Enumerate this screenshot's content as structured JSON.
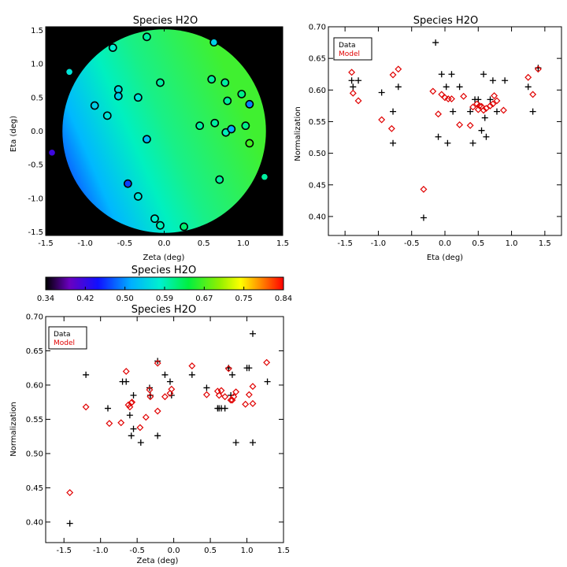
{
  "chart_data": [
    {
      "id": "map",
      "type": "scatter",
      "title": "Species H2O",
      "xlabel": "Zeta (deg)",
      "ylabel": "Eta (deg)",
      "xlim": [
        -1.5,
        1.5
      ],
      "ylim": [
        -1.55,
        1.55
      ],
      "xticks": [
        "-1.5",
        "-1.0",
        "-0.5",
        "0.0",
        "0.5",
        "1.0",
        "1.5"
      ],
      "yticks": [
        "-1.5",
        "-1.0",
        "-0.5",
        "0.0",
        "0.5",
        "1.0",
        "1.5"
      ],
      "background_field": "H2O normalization model, circular field of view on black background",
      "points": [
        {
          "x": -1.42,
          "y": -0.32,
          "v": 0.42
        },
        {
          "x": -1.2,
          "y": 0.88,
          "v": 0.57
        },
        {
          "x": -0.88,
          "y": 0.38,
          "v": 0.55
        },
        {
          "x": -0.72,
          "y": 0.23,
          "v": 0.57
        },
        {
          "x": -0.65,
          "y": 1.24,
          "v": 0.58
        },
        {
          "x": -0.58,
          "y": 0.62,
          "v": 0.56
        },
        {
          "x": -0.58,
          "y": 0.52,
          "v": 0.55
        },
        {
          "x": -0.46,
          "y": -0.78,
          "v": 0.47
        },
        {
          "x": -0.33,
          "y": -0.97,
          "v": 0.57
        },
        {
          "x": -0.33,
          "y": 0.5,
          "v": 0.57
        },
        {
          "x": -0.22,
          "y": 1.4,
          "v": 0.6
        },
        {
          "x": -0.22,
          "y": -0.12,
          "v": 0.53
        },
        {
          "x": -0.12,
          "y": -1.3,
          "v": 0.58
        },
        {
          "x": -0.05,
          "y": -1.4,
          "v": 0.59
        },
        {
          "x": -0.05,
          "y": 0.72,
          "v": 0.6
        },
        {
          "x": 0.25,
          "y": -1.42,
          "v": 0.62
        },
        {
          "x": 0.45,
          "y": 0.08,
          "v": 0.6
        },
        {
          "x": 0.6,
          "y": 0.77,
          "v": 0.6
        },
        {
          "x": 0.63,
          "y": 1.32,
          "v": 0.55
        },
        {
          "x": 0.64,
          "y": 0.12,
          "v": 0.6
        },
        {
          "x": 0.7,
          "y": -0.72,
          "v": 0.6
        },
        {
          "x": 0.77,
          "y": 0.72,
          "v": 0.6
        },
        {
          "x": 0.78,
          "y": -0.02,
          "v": 0.59
        },
        {
          "x": 0.8,
          "y": 0.45,
          "v": 0.6
        },
        {
          "x": 0.85,
          "y": 0.03,
          "v": 0.52
        },
        {
          "x": 0.98,
          "y": 0.55,
          "v": 0.61
        },
        {
          "x": 1.03,
          "y": 0.08,
          "v": 0.61
        },
        {
          "x": 1.08,
          "y": 0.4,
          "v": 0.5
        },
        {
          "x": 1.08,
          "y": -0.18,
          "v": 0.67
        },
        {
          "x": 1.27,
          "y": -0.68,
          "v": 0.6
        }
      ]
    },
    {
      "id": "eta",
      "type": "scatter",
      "title": "Species H2O",
      "xlabel": "Eta (deg)",
      "ylabel": "Normalization",
      "xlim": [
        -1.75,
        1.75
      ],
      "ylim": [
        0.37,
        0.7
      ],
      "xticks": [
        "-1.5",
        "-1.0",
        "-0.5",
        "0.0",
        "0.5",
        "1.0",
        "1.5"
      ],
      "yticks": [
        "0.40",
        "0.45",
        "0.50",
        "0.55",
        "0.60",
        "0.65",
        "0.70"
      ],
      "legend": {
        "position": "top-left",
        "entries": [
          {
            "label": "Data",
            "color": "#000000"
          },
          {
            "label": "Model",
            "color": "#e00000"
          }
        ]
      },
      "series": [
        {
          "name": "Data",
          "marker": "plus",
          "color": "#000000",
          "points": [
            [
              -1.4,
              0.615
            ],
            [
              -1.38,
              0.605
            ],
            [
              -1.3,
              0.615
            ],
            [
              -0.95,
              0.596
            ],
            [
              -0.78,
              0.516
            ],
            [
              -0.78,
              0.566
            ],
            [
              -0.7,
              0.605
            ],
            [
              -0.32,
              0.398
            ],
            [
              -0.14,
              0.675
            ],
            [
              -0.1,
              0.526
            ],
            [
              -0.05,
              0.625
            ],
            [
              0.02,
              0.605
            ],
            [
              0.04,
              0.516
            ],
            [
              0.1,
              0.625
            ],
            [
              0.12,
              0.566
            ],
            [
              0.22,
              0.605
            ],
            [
              0.38,
              0.566
            ],
            [
              0.42,
              0.516
            ],
            [
              0.45,
              0.585
            ],
            [
              0.5,
              0.585
            ],
            [
              0.55,
              0.536
            ],
            [
              0.58,
              0.625
            ],
            [
              0.6,
              0.556
            ],
            [
              0.62,
              0.526
            ],
            [
              0.68,
              0.585
            ],
            [
              0.72,
              0.615
            ],
            [
              0.78,
              0.566
            ],
            [
              0.9,
              0.615
            ],
            [
              1.25,
              0.605
            ],
            [
              1.32,
              0.566
            ],
            [
              1.4,
              0.635
            ]
          ]
        },
        {
          "name": "Model",
          "marker": "diamond",
          "color": "#e00000",
          "points": [
            [
              -1.4,
              0.628
            ],
            [
              -1.38,
              0.595
            ],
            [
              -1.3,
              0.583
            ],
            [
              -0.95,
              0.553
            ],
            [
              -0.8,
              0.539
            ],
            [
              -0.78,
              0.624
            ],
            [
              -0.7,
              0.633
            ],
            [
              -0.32,
              0.443
            ],
            [
              -0.18,
              0.598
            ],
            [
              -0.1,
              0.562
            ],
            [
              -0.05,
              0.593
            ],
            [
              0.0,
              0.588
            ],
            [
              0.05,
              0.586
            ],
            [
              0.1,
              0.586
            ],
            [
              0.22,
              0.545
            ],
            [
              0.28,
              0.59
            ],
            [
              0.38,
              0.544
            ],
            [
              0.42,
              0.573
            ],
            [
              0.48,
              0.578
            ],
            [
              0.5,
              0.569
            ],
            [
              0.52,
              0.575
            ],
            [
              0.55,
              0.574
            ],
            [
              0.58,
              0.568
            ],
            [
              0.62,
              0.571
            ],
            [
              0.68,
              0.575
            ],
            [
              0.72,
              0.578
            ],
            [
              0.74,
              0.591
            ],
            [
              0.78,
              0.583
            ],
            [
              0.88,
              0.568
            ],
            [
              1.25,
              0.62
            ],
            [
              1.32,
              0.593
            ],
            [
              1.4,
              0.633
            ]
          ]
        }
      ]
    },
    {
      "id": "zeta",
      "type": "scatter",
      "title": "Species H2O",
      "xlabel": "Zeta (deg)",
      "ylabel": "Normalization",
      "xlim": [
        -1.75,
        1.5
      ],
      "ylim": [
        0.37,
        0.7
      ],
      "xticks": [
        "-1.5",
        "-1.0",
        "-0.5",
        "0.0",
        "0.5",
        "1.0",
        "1.5"
      ],
      "yticks": [
        "0.40",
        "0.45",
        "0.50",
        "0.55",
        "0.60",
        "0.65",
        "0.70"
      ],
      "legend": {
        "position": "top-left",
        "entries": [
          {
            "label": "Data",
            "color": "#000000"
          },
          {
            "label": "Model",
            "color": "#e00000"
          }
        ]
      },
      "series": [
        {
          "name": "Data",
          "marker": "plus",
          "color": "#000000",
          "points": [
            [
              -1.42,
              0.398
            ],
            [
              -1.2,
              0.615
            ],
            [
              -0.9,
              0.566
            ],
            [
              -0.7,
              0.605
            ],
            [
              -0.65,
              0.605
            ],
            [
              -0.6,
              0.556
            ],
            [
              -0.58,
              0.526
            ],
            [
              -0.55,
              0.585
            ],
            [
              -0.55,
              0.536
            ],
            [
              -0.45,
              0.516
            ],
            [
              -0.33,
              0.596
            ],
            [
              -0.32,
              0.585
            ],
            [
              -0.22,
              0.526
            ],
            [
              -0.22,
              0.635
            ],
            [
              -0.12,
              0.615
            ],
            [
              -0.05,
              0.605
            ],
            [
              -0.03,
              0.585
            ],
            [
              0.25,
              0.615
            ],
            [
              0.45,
              0.596
            ],
            [
              0.6,
              0.566
            ],
            [
              0.62,
              0.566
            ],
            [
              0.65,
              0.566
            ],
            [
              0.7,
              0.566
            ],
            [
              0.75,
              0.625
            ],
            [
              0.78,
              0.585
            ],
            [
              0.8,
              0.615
            ],
            [
              0.85,
              0.516
            ],
            [
              1.0,
              0.625
            ],
            [
              1.03,
              0.625
            ],
            [
              1.08,
              0.516
            ],
            [
              1.08,
              0.675
            ],
            [
              1.28,
              0.605
            ]
          ]
        },
        {
          "name": "Model",
          "marker": "diamond",
          "color": "#e00000",
          "points": [
            [
              -1.42,
              0.443
            ],
            [
              -1.2,
              0.568
            ],
            [
              -0.88,
              0.544
            ],
            [
              -0.72,
              0.545
            ],
            [
              -0.65,
              0.62
            ],
            [
              -0.62,
              0.571
            ],
            [
              -0.6,
              0.568
            ],
            [
              -0.58,
              0.574
            ],
            [
              -0.57,
              0.575
            ],
            [
              -0.46,
              0.538
            ],
            [
              -0.38,
              0.553
            ],
            [
              -0.33,
              0.593
            ],
            [
              -0.32,
              0.583
            ],
            [
              -0.22,
              0.562
            ],
            [
              -0.22,
              0.632
            ],
            [
              -0.12,
              0.583
            ],
            [
              -0.05,
              0.588
            ],
            [
              -0.03,
              0.594
            ],
            [
              0.25,
              0.628
            ],
            [
              0.45,
              0.586
            ],
            [
              0.6,
              0.591
            ],
            [
              0.62,
              0.585
            ],
            [
              0.65,
              0.592
            ],
            [
              0.7,
              0.583
            ],
            [
              0.75,
              0.624
            ],
            [
              0.78,
              0.578
            ],
            [
              0.8,
              0.578
            ],
            [
              0.82,
              0.583
            ],
            [
              0.85,
              0.59
            ],
            [
              0.98,
              0.572
            ],
            [
              1.03,
              0.586
            ],
            [
              1.08,
              0.598
            ],
            [
              1.08,
              0.573
            ],
            [
              1.27,
              0.633
            ]
          ]
        }
      ]
    }
  ],
  "colorbar": {
    "title": "Species H2O",
    "ticks": [
      "0.34",
      "0.42",
      "0.50",
      "0.59",
      "0.67",
      "0.75",
      "0.84"
    ],
    "range": [
      0.34,
      0.84
    ],
    "colormap": "rainbow"
  }
}
